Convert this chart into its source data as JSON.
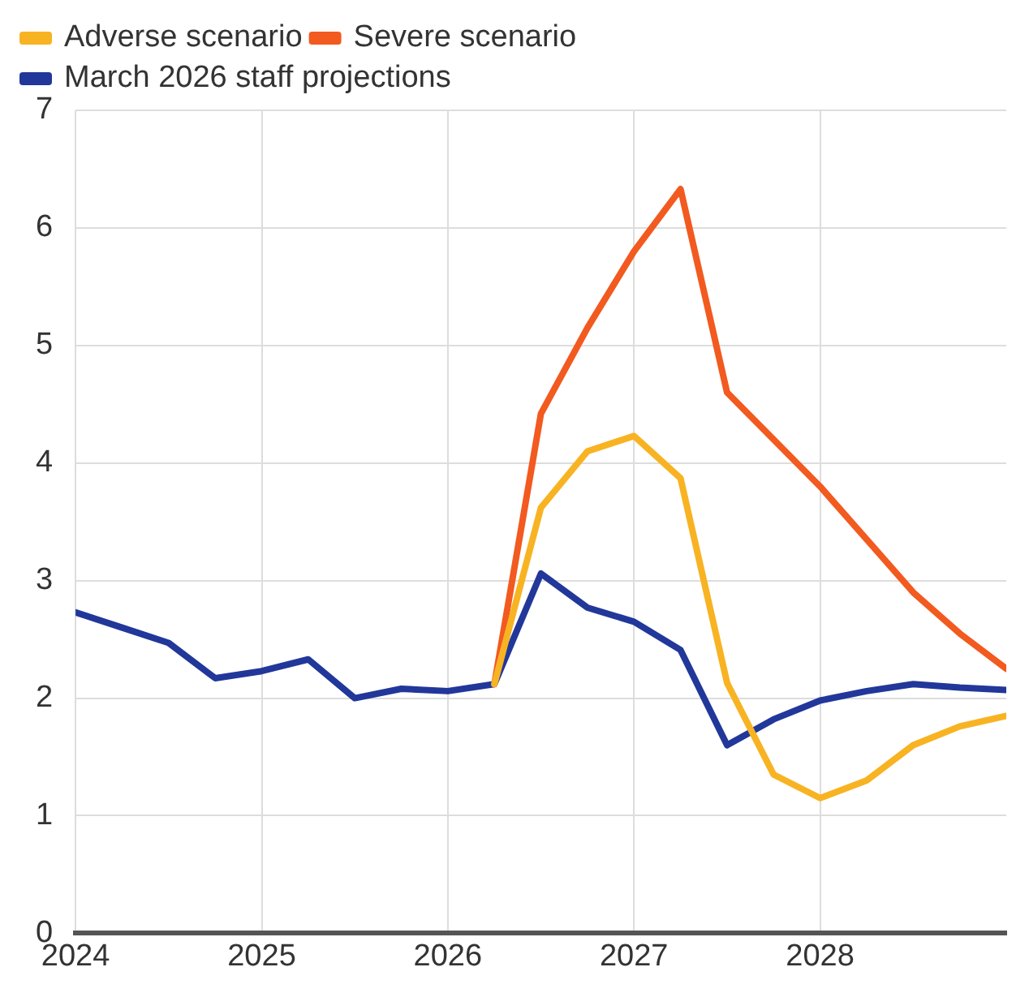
{
  "chart_data": {
    "type": "line",
    "xlim": [
      2024,
      2029
    ],
    "xticks": [
      2024,
      2025,
      2026,
      2027,
      2028
    ],
    "ylim": [
      0,
      7
    ],
    "yticks": [
      0,
      1,
      2,
      3,
      4,
      5,
      6,
      7
    ],
    "grid": true,
    "legend": "top left",
    "marker": "none",
    "line_style": "solid",
    "series": [
      {
        "name": "Adverse scenario",
        "color": "#f8b323",
        "x": [
          2026.25,
          2026.5,
          2026.75,
          2027,
          2027.25,
          2027.5,
          2027.75,
          2028,
          2028.25,
          2028.5,
          2028.75,
          2029
        ],
        "values": [
          2.12,
          3.62,
          4.1,
          4.23,
          3.87,
          2.13,
          1.35,
          1.15,
          1.3,
          1.6,
          1.76,
          1.85
        ]
      },
      {
        "name": "Severe scenario",
        "color": "#f25a1f",
        "x": [
          2026.25,
          2026.5,
          2026.75,
          2027,
          2027.25,
          2027.5,
          2027.75,
          2028,
          2028.25,
          2028.5,
          2028.75,
          2029
        ],
        "values": [
          2.12,
          4.42,
          5.15,
          5.8,
          6.33,
          4.6,
          4.2,
          3.8,
          3.35,
          2.9,
          2.55,
          2.25
        ]
      },
      {
        "name": "March 2026 staff projections",
        "color": "#22379a",
        "x": [
          2024,
          2024.25,
          2024.5,
          2024.75,
          2025,
          2025.25,
          2025.5,
          2025.75,
          2026,
          2026.25,
          2026.5,
          2026.75,
          2027,
          2027.25,
          2027.5,
          2027.75,
          2028,
          2028.25,
          2028.5,
          2028.75,
          2029
        ],
        "values": [
          2.73,
          2.6,
          2.47,
          2.17,
          2.23,
          2.33,
          2.0,
          2.08,
          2.06,
          2.12,
          3.06,
          2.77,
          2.65,
          2.41,
          1.6,
          1.82,
          1.98,
          2.06,
          2.12,
          2.09,
          2.07
        ]
      }
    ]
  }
}
